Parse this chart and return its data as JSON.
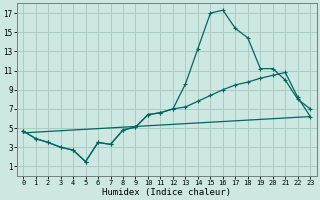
{
  "xlabel": "Humidex (Indice chaleur)",
  "bg_color": "#cce8e0",
  "grid_color": "#aaccc4",
  "line_color": "#006666",
  "xlim": [
    -0.5,
    23.5
  ],
  "ylim": [
    0,
    18
  ],
  "xticks": [
    0,
    1,
    2,
    3,
    4,
    5,
    6,
    7,
    8,
    9,
    10,
    11,
    12,
    13,
    14,
    15,
    16,
    17,
    18,
    19,
    20,
    21,
    22,
    23
  ],
  "yticks": [
    1,
    3,
    5,
    7,
    9,
    11,
    13,
    15,
    17
  ],
  "line1_x": [
    0,
    1,
    2,
    3,
    4,
    5,
    6,
    7,
    8,
    9,
    10,
    11,
    12,
    13,
    14,
    15,
    16,
    17,
    18,
    19,
    20,
    21,
    22,
    23
  ],
  "line1_y": [
    4.7,
    3.9,
    3.5,
    3.0,
    2.7,
    1.5,
    3.5,
    3.3,
    4.8,
    5.1,
    6.4,
    6.6,
    7.0,
    9.6,
    13.3,
    17.0,
    17.3,
    15.4,
    14.4,
    11.2,
    11.2,
    10.0,
    8.0,
    7.0
  ],
  "line2_x": [
    0,
    1,
    2,
    3,
    4,
    5,
    6,
    7,
    8,
    9,
    10,
    11,
    12,
    13,
    14,
    15,
    16,
    17,
    18,
    19,
    20,
    21,
    22,
    23
  ],
  "line2_y": [
    4.7,
    3.9,
    3.5,
    3.0,
    2.7,
    1.5,
    3.5,
    3.3,
    4.8,
    5.1,
    6.4,
    6.6,
    7.0,
    7.2,
    7.8,
    8.4,
    9.0,
    9.5,
    9.8,
    10.2,
    10.5,
    10.8,
    8.2,
    6.2
  ],
  "line3_x": [
    0,
    23
  ],
  "line3_y": [
    4.5,
    6.2
  ]
}
